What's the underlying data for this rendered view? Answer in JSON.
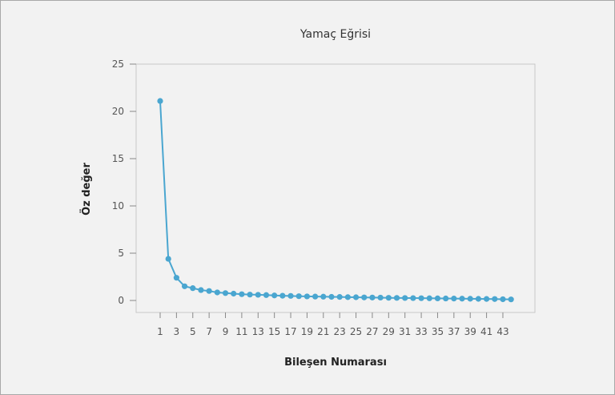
{
  "chart_data": {
    "type": "line",
    "title": "Yamaç Eğrisi",
    "xlabel": "Bileşen Numarası",
    "ylabel": "Öz değer",
    "x": [
      1,
      2,
      3,
      4,
      5,
      6,
      7,
      8,
      9,
      10,
      11,
      12,
      13,
      14,
      15,
      16,
      17,
      18,
      19,
      20,
      21,
      22,
      23,
      24,
      25,
      26,
      27,
      28,
      29,
      30,
      31,
      32,
      33,
      34,
      35,
      36,
      37,
      38,
      39,
      40,
      41,
      42,
      43,
      44
    ],
    "values": [
      21.1,
      4.4,
      2.4,
      1.5,
      1.3,
      1.1,
      1.0,
      0.85,
      0.78,
      0.72,
      0.66,
      0.62,
      0.6,
      0.57,
      0.53,
      0.5,
      0.48,
      0.45,
      0.43,
      0.41,
      0.4,
      0.38,
      0.37,
      0.35,
      0.34,
      0.32,
      0.31,
      0.3,
      0.28,
      0.27,
      0.26,
      0.25,
      0.24,
      0.23,
      0.22,
      0.21,
      0.2,
      0.19,
      0.18,
      0.17,
      0.16,
      0.15,
      0.13,
      0.11
    ],
    "x_ticks": [
      "1",
      "3",
      "5",
      "7",
      "9",
      "11",
      "13",
      "15",
      "17",
      "19",
      "21",
      "23",
      "25",
      "27",
      "29",
      "31",
      "33",
      "35",
      "37",
      "39",
      "41",
      "43"
    ],
    "y_ticks": [
      "0",
      "5",
      "10",
      "15",
      "20",
      "25"
    ],
    "ylim": [
      0,
      25
    ],
    "xlim": [
      -2,
      46
    ],
    "grid": false,
    "series_color": "#4aa6d0"
  }
}
